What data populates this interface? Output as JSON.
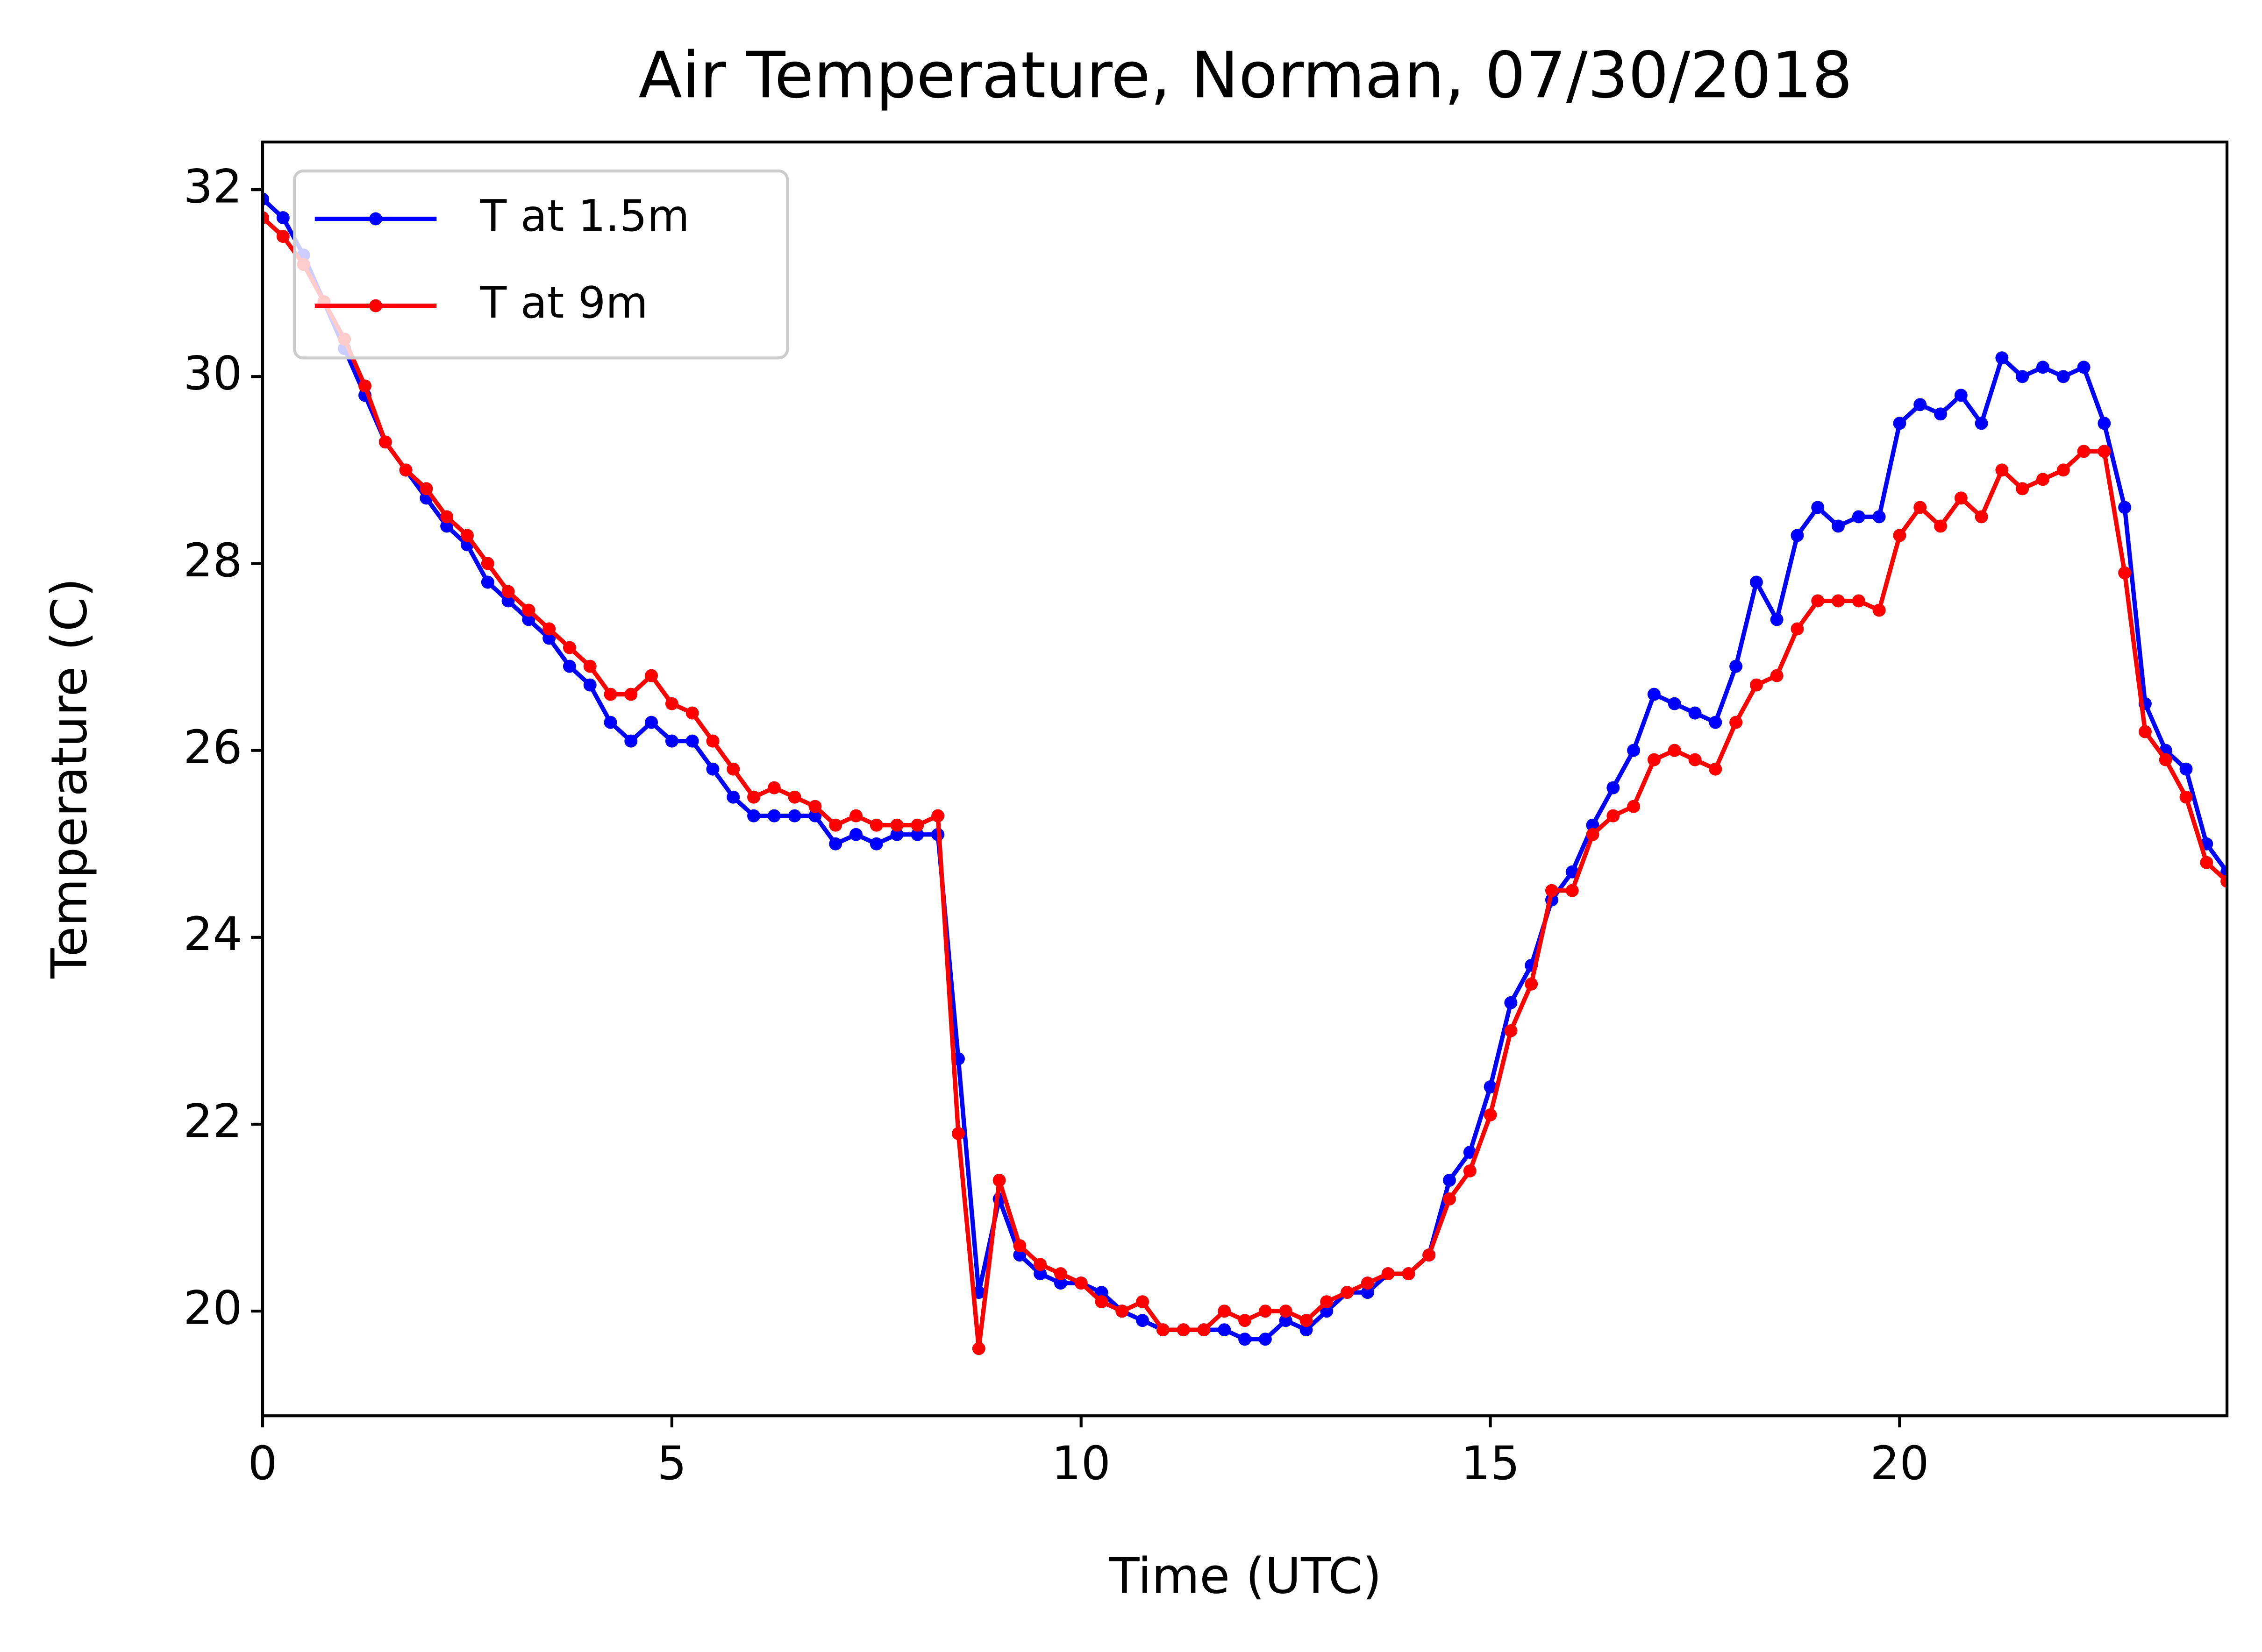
{
  "chart_data": {
    "type": "line",
    "title": "Air Temperature, Norman, 07/30/2018",
    "x_label": "Time (UTC)",
    "y_label": "Temperature (C)",
    "x": [
      0,
      0.25,
      0.5,
      0.75,
      1,
      1.25,
      1.5,
      1.75,
      2,
      2.25,
      2.5,
      2.75,
      3,
      3.25,
      3.5,
      3.75,
      4,
      4.25,
      4.5,
      4.75,
      5,
      5.25,
      5.5,
      5.75,
      6,
      6.25,
      6.5,
      6.75,
      7,
      7.25,
      7.5,
      7.75,
      8,
      8.25,
      8.5,
      8.75,
      9,
      9.25,
      9.5,
      9.75,
      10,
      10.25,
      10.5,
      10.75,
      11,
      11.25,
      11.5,
      11.75,
      12,
      12.25,
      12.5,
      12.75,
      13,
      13.25,
      13.5,
      13.75,
      14,
      14.25,
      14.5,
      14.75,
      15,
      15.25,
      15.5,
      15.75,
      16,
      16.25,
      16.5,
      16.75,
      17,
      17.25,
      17.5,
      17.75,
      18,
      18.25,
      18.5,
      18.75,
      19,
      19.25,
      19.5,
      19.75,
      20,
      20.25,
      20.5,
      20.75,
      21,
      21.25,
      21.5,
      21.75,
      22,
      22.25,
      22.5,
      22.75,
      23,
      23.25,
      23.5,
      23.75,
      24
    ],
    "series": [
      {
        "name": "T at 1.5m",
        "color": "#0000ff",
        "values": [
          31.9,
          31.7,
          31.3,
          30.8,
          30.3,
          29.8,
          29.3,
          29.0,
          28.7,
          28.4,
          28.2,
          27.8,
          27.6,
          27.4,
          27.2,
          26.9,
          26.7,
          26.3,
          26.1,
          26.3,
          26.1,
          26.1,
          25.8,
          25.5,
          25.3,
          25.3,
          25.3,
          25.3,
          25.0,
          25.1,
          25.0,
          25.1,
          25.1,
          25.1,
          22.7,
          20.2,
          21.2,
          20.6,
          20.4,
          20.3,
          20.3,
          20.2,
          20.0,
          19.9,
          19.8,
          19.8,
          19.8,
          19.8,
          19.7,
          19.7,
          19.9,
          19.8,
          20.0,
          20.2,
          20.2,
          20.4,
          20.4,
          20.6,
          21.4,
          21.7,
          22.4,
          23.3,
          23.7,
          24.4,
          24.7,
          25.2,
          25.6,
          26.0,
          26.6,
          26.5,
          26.4,
          26.3,
          26.9,
          27.8,
          27.4,
          28.3,
          28.6,
          28.4,
          28.5,
          28.5,
          29.5,
          29.7,
          29.6,
          29.8,
          29.5,
          30.2,
          30.0,
          30.1,
          30.0,
          30.1,
          29.5,
          28.6,
          26.5,
          26.0,
          25.8,
          25.0,
          24.7
        ]
      },
      {
        "name": "T at 9m",
        "color": "#ff0000",
        "values": [
          31.7,
          31.5,
          31.2,
          30.8,
          30.4,
          29.9,
          29.3,
          29.0,
          28.8,
          28.5,
          28.3,
          28.0,
          27.7,
          27.5,
          27.3,
          27.1,
          26.9,
          26.6,
          26.6,
          26.8,
          26.5,
          26.4,
          26.1,
          25.8,
          25.5,
          25.6,
          25.5,
          25.4,
          25.2,
          25.3,
          25.2,
          25.2,
          25.2,
          25.3,
          21.9,
          19.6,
          21.4,
          20.7,
          20.5,
          20.4,
          20.3,
          20.1,
          20.0,
          20.1,
          19.8,
          19.8,
          19.8,
          20.0,
          19.9,
          20.0,
          20.0,
          19.9,
          20.1,
          20.2,
          20.3,
          20.4,
          20.4,
          20.6,
          21.2,
          21.5,
          22.1,
          23.0,
          23.5,
          24.5,
          24.5,
          25.1,
          25.3,
          25.4,
          25.9,
          26.0,
          25.9,
          25.8,
          26.3,
          26.7,
          26.8,
          27.3,
          27.6,
          27.6,
          27.6,
          27.5,
          28.3,
          28.6,
          28.4,
          28.7,
          28.5,
          29.0,
          28.8,
          28.9,
          29.0,
          29.2,
          29.2,
          27.9,
          26.2,
          25.9,
          25.5,
          24.8,
          24.6
        ]
      }
    ],
    "xlim": [
      0,
      24
    ],
    "ylim": [
      18.88,
      32.51
    ],
    "xticks": [
      0,
      5,
      10,
      15,
      20
    ],
    "yticks": [
      20,
      22,
      24,
      26,
      28,
      30,
      32
    ],
    "grid": false,
    "legend": "upper left"
  }
}
